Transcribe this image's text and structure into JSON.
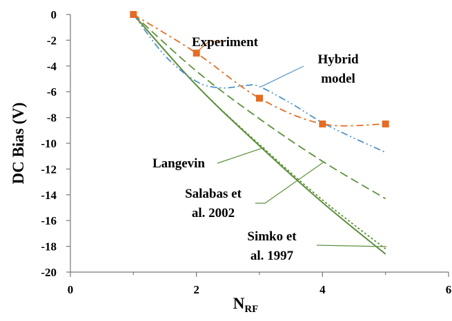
{
  "chart_data": {
    "type": "line",
    "xlabel": "N",
    "xlabel_sub": "RF",
    "ylabel": "DC Bias (V)",
    "xlim": [
      0,
      6
    ],
    "ylim": [
      -20,
      0
    ],
    "x_ticks": [
      "0",
      "2",
      "4",
      "6"
    ],
    "y_ticks": [
      "0",
      "-2",
      "-4",
      "-6",
      "-8",
      "-10",
      "-12",
      "-14",
      "-16",
      "-18",
      "-20"
    ],
    "grid": false,
    "legend": "none",
    "series": [
      {
        "name": "Experiment",
        "color": "#E46C24",
        "style": "dash-dot",
        "marker": "square",
        "points": [
          [
            1,
            0
          ],
          [
            2,
            -3
          ],
          [
            3,
            -6.5
          ],
          [
            4,
            -8.5
          ],
          [
            5,
            -8.5
          ]
        ]
      },
      {
        "name": "Hybrid model",
        "color": "#4F93C9",
        "style": "dash-dot-dot",
        "points": [
          [
            1,
            0
          ],
          [
            1.5,
            -3.2
          ],
          [
            2,
            -5.2
          ],
          [
            2.4,
            -5.7
          ],
          [
            2.8,
            -5.5
          ],
          [
            3,
            -5.6
          ],
          [
            3.5,
            -6.9
          ],
          [
            4,
            -8.4
          ],
          [
            4.5,
            -9.6
          ],
          [
            5,
            -10.7
          ]
        ]
      },
      {
        "name": "Langevin",
        "color": "#5C8F3A",
        "style": "solid",
        "points": [
          [
            1,
            0
          ],
          [
            2,
            -5.5
          ],
          [
            3,
            -10.2
          ],
          [
            4,
            -14.6
          ],
          [
            5,
            -18.6
          ]
        ]
      },
      {
        "name": "Salabas et al. 2002",
        "color": "#5C8F3A",
        "style": "dash",
        "points": [
          [
            1,
            0
          ],
          [
            2,
            -4.4
          ],
          [
            3,
            -8.1
          ],
          [
            4,
            -11.4
          ],
          [
            5,
            -14.3
          ]
        ]
      },
      {
        "name": "Simko et al. 1997",
        "color": "#5C8F3A",
        "style": "dot",
        "points": [
          [
            1,
            0
          ],
          [
            2,
            -5.5
          ],
          [
            3,
            -10.1
          ],
          [
            4,
            -14.4
          ],
          [
            5,
            -18.2
          ]
        ]
      }
    ],
    "annotations": [
      {
        "text": "Experiment",
        "series": "Experiment"
      },
      {
        "lines": [
          "Hybrid",
          "model"
        ],
        "series": "Hybrid model"
      },
      {
        "text": "Langevin",
        "series": "Langevin"
      },
      {
        "lines": [
          "Salabas et",
          "al. 2002"
        ],
        "series": "Salabas et al. 2002"
      },
      {
        "lines": [
          "Simko et",
          "al. 1997"
        ],
        "series": "Simko et al. 1997"
      }
    ]
  }
}
